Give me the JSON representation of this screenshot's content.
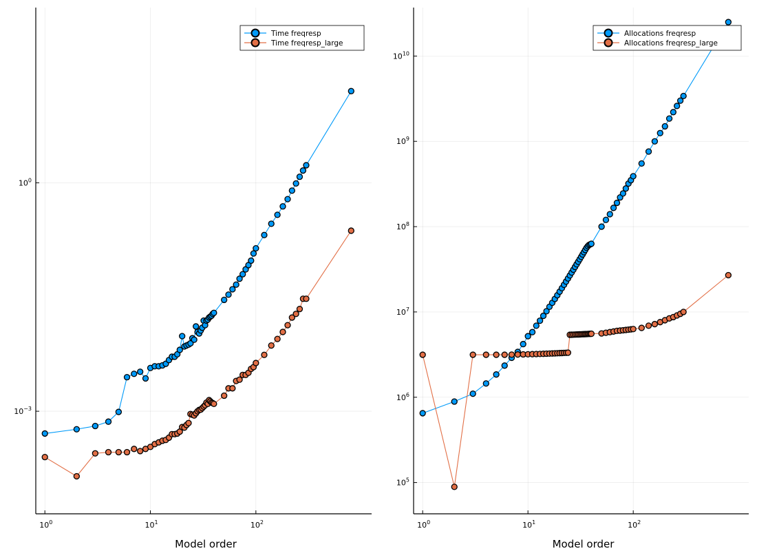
{
  "chart_data": [
    {
      "type": "line",
      "title": "",
      "xlabel": "Model order",
      "ylabel": "",
      "xscale": "log",
      "yscale": "log",
      "xlim": [
        0.82,
        1250
      ],
      "ylim": [
        4.5e-05,
        200
      ],
      "xticks": [
        {
          "value": 1,
          "base": "10",
          "exp": "0"
        },
        {
          "value": 10,
          "base": "10",
          "exp": "1"
        },
        {
          "value": 100,
          "base": "10",
          "exp": "2"
        }
      ],
      "yticks": [
        {
          "value": 0.001,
          "base": "10",
          "exp": "−3"
        },
        {
          "value": 1,
          "base": "10",
          "exp": "0"
        }
      ],
      "grid": true,
      "legend_position": "top-right",
      "series": [
        {
          "name": "Time freqresp",
          "color": "#009af9",
          "x": [
            1,
            2,
            3,
            4,
            5,
            6,
            7,
            8,
            9,
            10,
            11,
            12,
            13,
            14,
            15,
            16,
            17,
            18,
            19,
            20,
            21,
            22,
            23,
            24,
            25,
            26,
            27,
            28,
            29,
            30,
            31,
            32,
            33,
            34,
            35,
            36,
            37,
            38,
            39,
            40,
            50,
            55,
            60,
            65,
            70,
            75,
            80,
            85,
            90,
            95,
            100,
            120,
            140,
            160,
            180,
            200,
            220,
            240,
            260,
            280,
            300,
            800
          ],
          "y": [
            0.00051,
            0.00058,
            0.00064,
            0.00073,
            0.00098,
            0.0028,
            0.0031,
            0.0033,
            0.0027,
            0.0037,
            0.0039,
            0.0039,
            0.004,
            0.0042,
            0.0047,
            0.0052,
            0.0052,
            0.0056,
            0.0064,
            0.0097,
            0.0071,
            0.0073,
            0.0075,
            0.0078,
            0.0091,
            0.0087,
            0.013,
            0.011,
            0.0105,
            0.0115,
            0.0125,
            0.0155,
            0.0135,
            0.0155,
            0.016,
            0.017,
            0.0175,
            0.018,
            0.019,
            0.0196,
            0.029,
            0.034,
            0.04,
            0.046,
            0.055,
            0.063,
            0.073,
            0.083,
            0.095,
            0.118,
            0.138,
            0.206,
            0.29,
            0.38,
            0.49,
            0.61,
            0.79,
            0.98,
            1.2,
            1.45,
            1.7,
            16
          ]
        },
        {
          "name": "Time freqresp_large",
          "color": "#e26f46",
          "x": [
            1,
            2,
            3,
            4,
            5,
            6,
            7,
            8,
            9,
            10,
            11,
            12,
            13,
            14,
            15,
            16,
            17,
            18,
            19,
            20,
            21,
            22,
            23,
            24,
            25,
            26,
            27,
            28,
            29,
            30,
            31,
            32,
            33,
            34,
            35,
            36,
            37,
            38,
            39,
            40,
            50,
            55,
            60,
            65,
            70,
            75,
            80,
            85,
            90,
            95,
            100,
            120,
            140,
            160,
            180,
            200,
            220,
            240,
            260,
            280,
            300,
            800
          ],
          "y": [
            0.00025,
            0.00014,
            0.00028,
            0.00029,
            0.00029,
            0.00029,
            0.00032,
            0.0003,
            0.00032,
            0.00034,
            0.00037,
            0.00039,
            0.00041,
            0.00042,
            0.00045,
            0.0005,
            0.0005,
            0.00051,
            0.00054,
            0.00062,
            0.00061,
            0.00066,
            0.0007,
            0.00092,
            0.0009,
            0.00088,
            0.00094,
            0.001,
            0.00104,
            0.00105,
            0.0011,
            0.00115,
            0.0012,
            0.0013,
            0.00125,
            0.0014,
            0.00135,
            0.0013,
            0.00128,
            0.00125,
            0.0016,
            0.002,
            0.002,
            0.0025,
            0.0026,
            0.003,
            0.003,
            0.0032,
            0.0036,
            0.0038,
            0.0043,
            0.0055,
            0.0073,
            0.0089,
            0.011,
            0.0135,
            0.017,
            0.019,
            0.022,
            0.03,
            0.03,
            0.235
          ]
        }
      ]
    },
    {
      "type": "line",
      "title": "",
      "xlabel": "Model order",
      "ylabel": "",
      "xscale": "log",
      "yscale": "log",
      "xlim": [
        0.82,
        1250
      ],
      "ylim": [
        43000,
        37000000000
      ],
      "xticks": [
        {
          "value": 1,
          "base": "10",
          "exp": "0"
        },
        {
          "value": 10,
          "base": "10",
          "exp": "1"
        },
        {
          "value": 100,
          "base": "10",
          "exp": "2"
        }
      ],
      "yticks": [
        {
          "value": 100000,
          "base": "10",
          "exp": "5"
        },
        {
          "value": 1000000,
          "base": "10",
          "exp": "6"
        },
        {
          "value": 10000000,
          "base": "10",
          "exp": "7"
        },
        {
          "value": 100000000,
          "base": "10",
          "exp": "8"
        },
        {
          "value": 1000000000,
          "base": "10",
          "exp": "9"
        },
        {
          "value": 10000000000,
          "base": "10",
          "exp": "10"
        }
      ],
      "grid": true,
      "legend_position": "top-right",
      "series": [
        {
          "name": "Allocations freqresp",
          "color": "#009af9",
          "x": [
            1,
            2,
            3,
            4,
            5,
            6,
            7,
            8,
            9,
            10,
            11,
            12,
            13,
            14,
            15,
            16,
            17,
            18,
            19,
            20,
            21,
            22,
            23,
            24,
            25,
            26,
            27,
            28,
            29,
            30,
            31,
            32,
            33,
            34,
            35,
            36,
            37,
            38,
            39,
            40,
            50,
            55,
            60,
            65,
            70,
            75,
            80,
            85,
            90,
            95,
            100,
            120,
            140,
            160,
            180,
            200,
            220,
            240,
            260,
            280,
            300,
            800
          ],
          "y": [
            650000,
            890000,
            1100000,
            1450000,
            1850000,
            2350000,
            2900000,
            3400000,
            4200000,
            5200000,
            5800000,
            6900000,
            7900000,
            9000000,
            10200000,
            11500000,
            12800000,
            14200000,
            15700000,
            17300000,
            19000000,
            20800000,
            22700000,
            24700000,
            26800000,
            29000000,
            31300000,
            33700000,
            36200000,
            38800000,
            41500000,
            44300000,
            47200000,
            50200000,
            53300000,
            56500000,
            59000000,
            61000000,
            62000000,
            63000000,
            100000000,
            120000000,
            140000000,
            166000000,
            190000000,
            220000000,
            245000000,
            280000000,
            320000000,
            350000000,
            390000000,
            550000000,
            760000000,
            1000000000,
            1250000000,
            1500000000,
            1850000000,
            2200000000,
            2600000000,
            3000000000,
            3400000000,
            25000000000
          ]
        },
        {
          "name": "Allocations freqresp_large",
          "color": "#e26f46",
          "x": [
            1,
            2,
            3,
            4,
            5,
            6,
            7,
            8,
            9,
            10,
            11,
            12,
            13,
            14,
            15,
            16,
            17,
            18,
            19,
            20,
            21,
            22,
            23,
            24,
            25,
            26,
            27,
            28,
            29,
            30,
            31,
            32,
            33,
            34,
            35,
            36,
            37,
            38,
            39,
            40,
            50,
            55,
            60,
            65,
            70,
            75,
            80,
            85,
            90,
            95,
            100,
            120,
            140,
            160,
            180,
            200,
            220,
            240,
            260,
            280,
            300,
            800
          ],
          "y": [
            3150000,
            89000,
            3150000,
            3150000,
            3150000,
            3150000,
            3160000,
            3170000,
            3180000,
            3190000,
            3200000,
            3210000,
            3220000,
            3230000,
            3240000,
            3250000,
            3260000,
            3270000,
            3280000,
            3290000,
            3300000,
            3310000,
            3320000,
            3330000,
            5400000,
            5410000,
            5420000,
            5430000,
            5440000,
            5450000,
            5460000,
            5470000,
            5480000,
            5490000,
            5500000,
            5510000,
            5520000,
            5530000,
            5540000,
            5550000,
            5600000,
            5700000,
            5800000,
            5900000,
            6000000,
            6050000,
            6100000,
            6150000,
            6200000,
            6250000,
            6300000,
            6500000,
            6900000,
            7200000,
            7600000,
            8000000,
            8400000,
            8700000,
            9100000,
            9500000,
            10000000,
            27000000
          ]
        }
      ]
    }
  ]
}
